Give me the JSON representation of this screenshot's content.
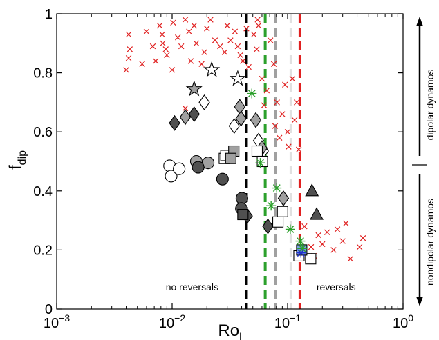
{
  "chart_data": {
    "type": "scatter",
    "title": "",
    "xlabel": "Ro",
    "xlabel_sub": "l",
    "ylabel": "f",
    "ylabel_sub": "dip",
    "xscale": "log",
    "xlim": [
      0.001,
      1
    ],
    "ylim": [
      0,
      1
    ],
    "xticks": [
      {
        "value": 0.001,
        "base": "10",
        "exp": "−3"
      },
      {
        "value": 0.01,
        "base": "10",
        "exp": "−2"
      },
      {
        "value": 0.1,
        "base": "10",
        "exp": "−1"
      },
      {
        "value": 1,
        "base": "10",
        "exp": "0"
      }
    ],
    "yticks": [
      {
        "value": 0,
        "label": "0"
      },
      {
        "value": 0.2,
        "label": "0.2"
      },
      {
        "value": 0.4,
        "label": "0.4"
      },
      {
        "value": 0.6,
        "label": "0.6"
      },
      {
        "value": 0.8,
        "label": "0.8"
      },
      {
        "value": 1,
        "label": "1"
      }
    ],
    "grid": false,
    "vlines": [
      {
        "x": 0.044,
        "color": "#000000"
      },
      {
        "x": 0.064,
        "color": "#2ca02c"
      },
      {
        "x": 0.079,
        "color": "#a0a0a0"
      },
      {
        "x": 0.107,
        "color": "#e0e0e0"
      },
      {
        "x": 0.128,
        "color": "#e02020"
      }
    ],
    "annotations": [
      {
        "text": "no reversals",
        "x": 0.0088,
        "y": 0.075
      },
      {
        "text": "reversals",
        "x": 0.178,
        "y": 0.075
      }
    ],
    "side_labels": {
      "top": "dipolar dynamos",
      "bottom": "nondipolar dynamos",
      "divider_y": 0.5
    },
    "series": [
      {
        "marker": "x",
        "color": "#e02020",
        "fill": "none",
        "points": [
          [
            0.0042,
            0.93
          ],
          [
            0.0043,
            0.88
          ],
          [
            0.0042,
            0.85
          ],
          [
            0.004,
            0.81
          ],
          [
            0.0055,
            0.83
          ],
          [
            0.006,
            0.94
          ],
          [
            0.0068,
            0.89
          ],
          [
            0.0078,
            0.96
          ],
          [
            0.0072,
            0.84
          ],
          [
            0.0083,
            0.9
          ],
          [
            0.0088,
            0.88
          ],
          [
            0.009,
            0.86
          ],
          [
            0.0082,
            0.93
          ],
          [
            0.01,
            0.81
          ],
          [
            0.0102,
            0.97
          ],
          [
            0.0112,
            0.92
          ],
          [
            0.012,
            0.89
          ],
          [
            0.013,
            0.98
          ],
          [
            0.014,
            0.94
          ],
          [
            0.0155,
            0.96
          ],
          [
            0.0145,
            0.84
          ],
          [
            0.0162,
            0.9
          ],
          [
            0.018,
            0.83
          ],
          [
            0.019,
            0.87
          ],
          [
            0.02,
            0.95
          ],
          [
            0.0215,
            0.98
          ],
          [
            0.0235,
            0.91
          ],
          [
            0.026,
            0.89
          ],
          [
            0.0285,
            0.87
          ],
          [
            0.03,
            0.96
          ],
          [
            0.032,
            0.91
          ],
          [
            0.035,
            0.94
          ],
          [
            0.037,
            0.89
          ],
          [
            0.039,
            0.86
          ],
          [
            0.041,
            0.84
          ],
          [
            0.046,
            0.82
          ],
          [
            0.051,
            0.93
          ],
          [
            0.054,
            0.88
          ],
          [
            0.056,
            0.96
          ],
          [
            0.06,
            0.78
          ],
          [
            0.0625,
            0.69
          ],
          [
            0.066,
            0.74
          ],
          [
            0.071,
            0.91
          ],
          [
            0.076,
            0.83
          ],
          [
            0.078,
            0.62
          ],
          [
            0.081,
            0.7
          ],
          [
            0.085,
            0.58
          ],
          [
            0.09,
            0.66
          ],
          [
            0.095,
            0.76
          ],
          [
            0.1,
            0.6
          ],
          [
            0.102,
            0.55
          ],
          [
            0.11,
            0.78
          ],
          [
            0.115,
            0.64
          ],
          [
            0.12,
            0.7
          ],
          [
            0.125,
            0.54
          ],
          [
            0.013,
            0.68
          ],
          [
            0.055,
            0.98
          ],
          [
            0.044,
            0.95
          ],
          [
            0.14,
            0.28
          ],
          [
            0.16,
            0.21
          ],
          [
            0.17,
            0.18
          ],
          [
            0.2,
            0.22
          ],
          [
            0.22,
            0.26
          ],
          [
            0.25,
            0.2
          ],
          [
            0.3,
            0.23
          ],
          [
            0.32,
            0.29
          ],
          [
            0.35,
            0.17
          ],
          [
            0.42,
            0.21
          ],
          [
            0.45,
            0.24
          ],
          [
            0.185,
            0.25
          ],
          [
            0.27,
            0.27
          ]
        ]
      },
      {
        "marker": "star5",
        "color": "#000000",
        "fill": "#ffffff",
        "points": [
          [
            0.022,
            0.81
          ],
          [
            0.037,
            0.78
          ]
        ]
      },
      {
        "marker": "star5",
        "color": "#000000",
        "fill": "#a0a0a0",
        "points": [
          [
            0.0155,
            0.745
          ]
        ]
      },
      {
        "marker": "diamond",
        "color": "#000000",
        "fill": "#ffffff",
        "points": [
          [
            0.019,
            0.7
          ],
          [
            0.0345,
            0.62
          ],
          [
            0.056,
            0.57
          ],
          [
            0.0615,
            0.535
          ]
        ]
      },
      {
        "marker": "diamond",
        "color": "#000000",
        "fill": "#a0a0a0",
        "points": [
          [
            0.013,
            0.65
          ],
          [
            0.0385,
            0.685
          ],
          [
            0.0395,
            0.645
          ],
          [
            0.053,
            0.64
          ],
          [
            0.06,
            0.545
          ],
          [
            0.092,
            0.375
          ]
        ]
      },
      {
        "marker": "diamond",
        "color": "#000000",
        "fill": "#505050",
        "points": [
          [
            0.0105,
            0.63
          ],
          [
            0.0155,
            0.66
          ],
          [
            0.0447,
            0.315
          ],
          [
            0.0675,
            0.28
          ]
        ]
      },
      {
        "marker": "circle",
        "color": "#000000",
        "fill": "#ffffff",
        "points": [
          [
            0.0095,
            0.485
          ],
          [
            0.0098,
            0.45
          ],
          [
            0.0115,
            0.475
          ]
        ]
      },
      {
        "marker": "circle",
        "color": "#000000",
        "fill": "#a0a0a0",
        "points": [
          [
            0.0162,
            0.5
          ],
          [
            0.0205,
            0.495
          ]
        ]
      },
      {
        "marker": "circle",
        "color": "#000000",
        "fill": "#505050",
        "points": [
          [
            0.0168,
            0.48
          ],
          [
            0.0273,
            0.44
          ],
          [
            0.0402,
            0.375
          ],
          [
            0.0398,
            0.34
          ]
        ]
      },
      {
        "marker": "square",
        "color": "#000000",
        "fill": "#ffffff",
        "points": [
          [
            0.0283,
            0.51
          ],
          [
            0.0292,
            0.52
          ],
          [
            0.0545,
            0.535
          ],
          [
            0.0605,
            0.5
          ],
          [
            0.0825,
            0.295
          ],
          [
            0.0905,
            0.33
          ],
          [
            0.1255,
            0.18
          ],
          [
            0.1585,
            0.17
          ]
        ]
      },
      {
        "marker": "square",
        "color": "#000000",
        "fill": "#a0a0a0",
        "points": [
          [
            0.0342,
            0.535
          ],
          [
            0.0322,
            0.51
          ]
        ]
      },
      {
        "marker": "square",
        "color": "#000000",
        "fill": "#505050",
        "points": [
          [
            0.041,
            0.32
          ]
        ]
      },
      {
        "marker": "square",
        "color": "#000000",
        "fill": "#7aa0e0",
        "points": [
          [
            0.1325,
            0.2
          ]
        ]
      },
      {
        "marker": "triangle",
        "color": "#000000",
        "fill": "#505050",
        "points": [
          [
            0.1625,
            0.4
          ],
          [
            0.1785,
            0.32
          ]
        ]
      },
      {
        "marker": "asterisk",
        "color": "#2ca02c",
        "fill": "none",
        "points": [
          [
            0.049,
            0.73
          ],
          [
            0.058,
            0.495
          ],
          [
            0.072,
            0.35
          ],
          [
            0.0805,
            0.41
          ],
          [
            0.1055,
            0.27
          ],
          [
            0.129,
            0.23
          ],
          [
            0.134,
            0.205
          ]
        ]
      },
      {
        "marker": "asterisk",
        "color": "#1f2fd0",
        "fill": "none",
        "points": [
          [
            0.1305,
            0.19
          ]
        ]
      }
    ]
  }
}
